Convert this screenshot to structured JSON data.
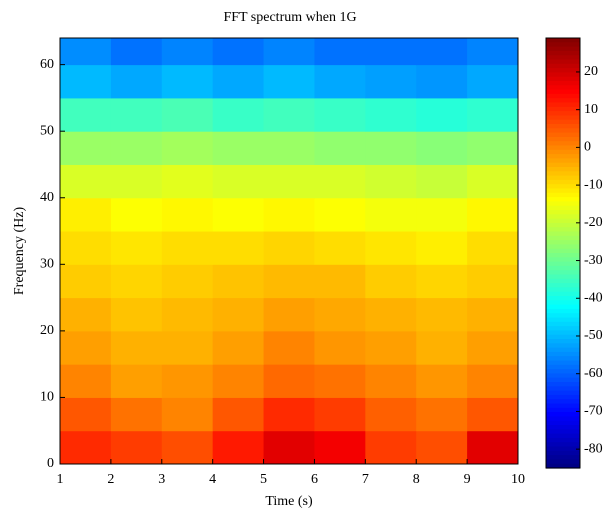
{
  "chart_data": {
    "type": "heatmap",
    "title": "FFT spectrum when 1G",
    "xlabel": "Time (s)",
    "ylabel": "Frequency (Hz)",
    "x_bins": [
      1,
      2,
      3,
      4,
      5,
      6,
      7,
      8,
      9,
      10
    ],
    "y_bins": [
      0,
      5,
      10,
      15,
      20,
      25,
      30,
      35,
      40,
      45,
      50,
      55,
      60,
      64
    ],
    "values": [
      [
        10,
        8,
        6,
        12,
        18,
        16,
        8,
        6,
        18
      ],
      [
        5,
        2,
        0,
        5,
        10,
        8,
        4,
        2,
        5
      ],
      [
        0,
        -3,
        -2,
        0,
        3,
        2,
        0,
        -2,
        0
      ],
      [
        -3,
        -5,
        -5,
        -3,
        0,
        -2,
        -3,
        -5,
        -3
      ],
      [
        -5,
        -7,
        -6,
        -5,
        -3,
        -4,
        -5,
        -6,
        -5
      ],
      [
        -8,
        -9,
        -8,
        -7,
        -6,
        -6,
        -8,
        -9,
        -8
      ],
      [
        -10,
        -11,
        -10,
        -10,
        -9,
        -10,
        -11,
        -12,
        -10
      ],
      [
        -12,
        -14,
        -13,
        -14,
        -13,
        -14,
        -15,
        -15,
        -13
      ],
      [
        -18,
        -18,
        -17,
        -18,
        -18,
        -18,
        -19,
        -20,
        -18
      ],
      [
        -25,
        -25,
        -24,
        -25,
        -25,
        -26,
        -26,
        -27,
        -26
      ],
      [
        -35,
        -35,
        -34,
        -36,
        -35,
        -36,
        -37,
        -38,
        -37
      ],
      [
        -50,
        -52,
        -50,
        -52,
        -50,
        -52,
        -53,
        -54,
        -52
      ],
      [
        -55,
        -58,
        -56,
        -58,
        -56,
        -58,
        -58,
        -58,
        -56
      ]
    ],
    "xlim": [
      1,
      10
    ],
    "ylim": [
      0,
      64
    ],
    "xticks": [
      1,
      2,
      3,
      4,
      5,
      6,
      7,
      8,
      9,
      10
    ],
    "yticks": [
      0,
      10,
      20,
      30,
      40,
      50,
      60
    ],
    "colormap": "jet",
    "clim": [
      -85,
      29
    ],
    "colorbar_ticks": [
      -80,
      -70,
      -60,
      -50,
      -40,
      -30,
      -20,
      -10,
      0,
      10,
      20
    ]
  }
}
